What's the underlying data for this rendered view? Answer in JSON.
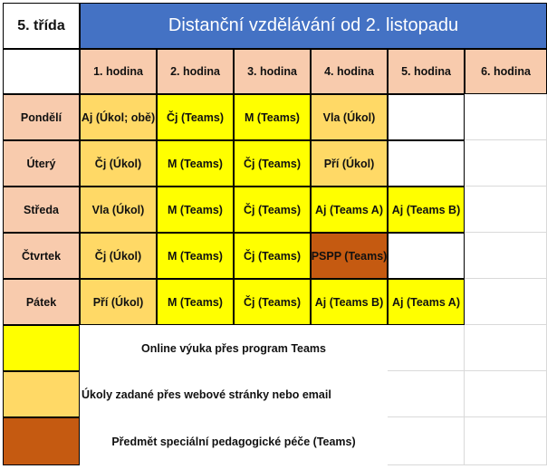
{
  "class_label": "5. třída",
  "title": "Distanční vzdělávání  od 2. listopadu",
  "periods": [
    "1. hodina",
    "2. hodina",
    "3. hodina",
    "4. hodina",
    "5. hodina",
    "6. hodina"
  ],
  "days": [
    {
      "name": "Pondělí",
      "lessons": [
        {
          "text": "Aj (Úkol; obě)",
          "type": "task"
        },
        {
          "text": "Čj (Teams)",
          "type": "online"
        },
        {
          "text": "M (Teams)",
          "type": "online"
        },
        {
          "text": "Vla (Úkol)",
          "type": "task"
        }
      ]
    },
    {
      "name": "Úterý",
      "lessons": [
        {
          "text": "Čj (Úkol)",
          "type": "task"
        },
        {
          "text": "M (Teams)",
          "type": "online"
        },
        {
          "text": "Čj (Teams)",
          "type": "online"
        },
        {
          "text": "Pří (Úkol)",
          "type": "task"
        }
      ]
    },
    {
      "name": "Středa",
      "lessons": [
        {
          "text": "Vla (Úkol)",
          "type": "task"
        },
        {
          "text": "M (Teams)",
          "type": "online"
        },
        {
          "text": "Čj (Teams)",
          "type": "online"
        },
        {
          "text": "Aj (Teams A)",
          "type": "online"
        },
        {
          "text": "Aj (Teams B)",
          "type": "online"
        }
      ]
    },
    {
      "name": "Čtvrtek",
      "lessons": [
        {
          "text": "Čj (Úkol)",
          "type": "task"
        },
        {
          "text": "M (Teams)",
          "type": "online"
        },
        {
          "text": "Čj (Teams)",
          "type": "online"
        },
        {
          "text": "PSPP (Teams)",
          "type": "special"
        }
      ]
    },
    {
      "name": "Pátek",
      "lessons": [
        {
          "text": "Pří (Úkol)",
          "type": "task"
        },
        {
          "text": "M (Teams)",
          "type": "online"
        },
        {
          "text": "Čj (Teams)",
          "type": "online"
        },
        {
          "text": "Aj (Teams B)",
          "type": "online"
        },
        {
          "text": "Aj (Teams A)",
          "type": "online"
        }
      ]
    }
  ],
  "legend": [
    {
      "type": "online",
      "text": "Online výuka přes program Teams"
    },
    {
      "type": "task",
      "text": "Úkoly zadané přes webové stránky nebo email"
    },
    {
      "type": "special",
      "text": "Předmět speciální pedagogické péče (Teams)"
    }
  ],
  "colors": {
    "title_bg": "#4472c4",
    "header_bg": "#f8cbad",
    "online": "#ffff00",
    "task": "#ffd966",
    "special": "#c55a11"
  }
}
